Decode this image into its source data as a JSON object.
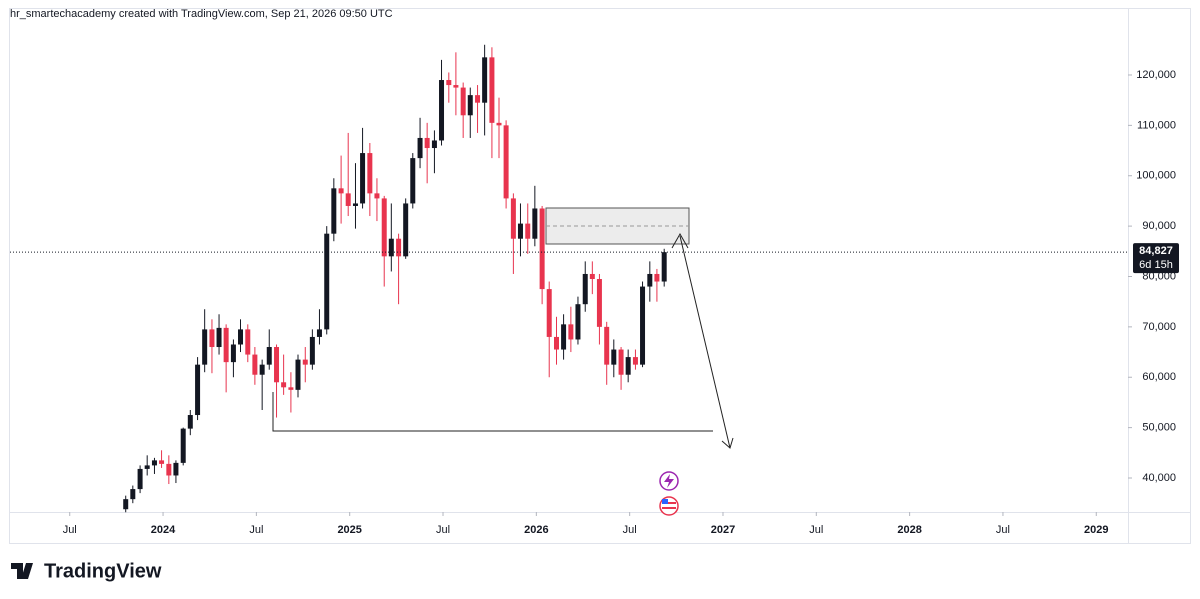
{
  "header": {
    "text": "hr_smartechacademy created with TradingView.com, Sep 21, 2026 09:50 UTC"
  },
  "footer": {
    "brand": "TradingView"
  },
  "chart_data": {
    "type": "candlestick",
    "up_color": "#131722",
    "down_color": "#e8344e",
    "xlim": [
      2023.18,
      2029.17
    ],
    "ylim": [
      33250,
      132900
    ],
    "xticks": [
      {
        "value": 2023.5,
        "label": "Jul"
      },
      2024,
      {
        "value": 2024.5,
        "label": "Jul"
      },
      2025,
      {
        "value": 2025.5,
        "label": "Jul"
      },
      2026,
      {
        "value": 2026.5,
        "label": "Jul"
      },
      2027,
      {
        "value": 2027.5,
        "label": "Jul"
      },
      2028,
      {
        "value": 2028.5,
        "label": "Jul"
      },
      2029
    ],
    "yticks": [
      {
        "value": 40000,
        "label": "40,000"
      },
      {
        "value": 50000,
        "label": "50,000"
      },
      {
        "value": 60000,
        "label": "60,000"
      },
      {
        "value": 70000,
        "label": "70,000"
      },
      {
        "value": 80000,
        "label": "80,000"
      },
      {
        "value": 90000,
        "label": "90,000"
      },
      {
        "value": 100000,
        "label": "100,000"
      },
      {
        "value": 110000,
        "label": "110,000"
      },
      {
        "value": 120000,
        "label": "120,000"
      }
    ],
    "last_price_label": "84,827",
    "countdown": "6d 15h",
    "x": [
      2023.8,
      2023.838,
      2023.877,
      2023.915,
      2023.954,
      2023.992,
      2024.031,
      2024.069,
      2024.108,
      2024.146,
      2024.185,
      2024.223,
      2024.262,
      2024.3,
      2024.338,
      2024.377,
      2024.415,
      2024.454,
      2024.492,
      2024.531,
      2024.569,
      2024.608,
      2024.646,
      2024.685,
      2024.723,
      2024.762,
      2024.8,
      2024.838,
      2024.877,
      2024.915,
      2024.954,
      2024.992,
      2025.031,
      2025.069,
      2025.108,
      2025.146,
      2025.185,
      2025.223,
      2025.262,
      2025.3,
      2025.338,
      2025.377,
      2025.415,
      2025.454,
      2025.492,
      2025.531,
      2025.569,
      2025.608,
      2025.646,
      2025.685,
      2025.723,
      2025.762,
      2025.8,
      2025.838,
      2025.877,
      2025.915,
      2025.954,
      2025.992,
      2026.031,
      2026.069,
      2026.108,
      2026.146,
      2026.185,
      2026.223,
      2026.262,
      2026.3,
      2026.338,
      2026.377,
      2026.415,
      2026.454,
      2026.492,
      2026.531,
      2026.569,
      2026.608,
      2026.646,
      2026.685
    ],
    "ohlc": [
      [
        33800,
        36500,
        33200,
        35800
      ],
      [
        35800,
        38500,
        35000,
        37800
      ],
      [
        37800,
        42500,
        37000,
        41800
      ],
      [
        41800,
        44500,
        40500,
        42500
      ],
      [
        42500,
        44000,
        40800,
        43500
      ],
      [
        43500,
        45500,
        42000,
        42800
      ],
      [
        42800,
        44500,
        38800,
        40500
      ],
      [
        40500,
        43500,
        39000,
        43000
      ],
      [
        43000,
        50000,
        42500,
        49800
      ],
      [
        49800,
        53500,
        48500,
        52500
      ],
      [
        52500,
        64000,
        51500,
        62500
      ],
      [
        62500,
        73500,
        61000,
        69500
      ],
      [
        69500,
        71500,
        60800,
        66000
      ],
      [
        66000,
        72500,
        64500,
        69800
      ],
      [
        69800,
        70500,
        57000,
        63000
      ],
      [
        63000,
        67500,
        60000,
        66500
      ],
      [
        66500,
        71500,
        65000,
        69500
      ],
      [
        69500,
        70500,
        63000,
        64500
      ],
      [
        64500,
        66000,
        58500,
        60500
      ],
      [
        60500,
        63500,
        53500,
        62500
      ],
      [
        62500,
        69500,
        61500,
        66000
      ],
      [
        66000,
        66500,
        52000,
        59000
      ],
      [
        59000,
        64500,
        56500,
        58000
      ],
      [
        58000,
        61000,
        53000,
        57500
      ],
      [
        57500,
        64500,
        56000,
        63500
      ],
      [
        63500,
        66000,
        59000,
        62500
      ],
      [
        62500,
        69500,
        61500,
        68000
      ],
      [
        68000,
        73500,
        66500,
        69500
      ],
      [
        69500,
        90000,
        68500,
        88500
      ],
      [
        88500,
        99500,
        87000,
        97500
      ],
      [
        97500,
        104000,
        90500,
        96500
      ],
      [
        96500,
        108500,
        92000,
        94000
      ],
      [
        94000,
        102500,
        89500,
        94500
      ],
      [
        94500,
        109500,
        93500,
        104500
      ],
      [
        104500,
        106500,
        92000,
        96500
      ],
      [
        96500,
        99500,
        91000,
        95500
      ],
      [
        95500,
        96000,
        78000,
        84000
      ],
      [
        84000,
        94500,
        81000,
        87500
      ],
      [
        87500,
        88500,
        74500,
        84000
      ],
      [
        84000,
        95500,
        83500,
        94500
      ],
      [
        94500,
        104500,
        93500,
        103500
      ],
      [
        103500,
        111500,
        101500,
        107500
      ],
      [
        107500,
        110500,
        98500,
        105500
      ],
      [
        105500,
        109000,
        100500,
        107000
      ],
      [
        107000,
        123000,
        106000,
        119000
      ],
      [
        119000,
        120500,
        114500,
        118000
      ],
      [
        118000,
        124500,
        112000,
        117500
      ],
      [
        117500,
        118500,
        107500,
        112000
      ],
      [
        112000,
        117500,
        107500,
        116000
      ],
      [
        116000,
        118000,
        108500,
        114500
      ],
      [
        114500,
        126000,
        108000,
        123500
      ],
      [
        123500,
        125500,
        103500,
        110500
      ],
      [
        110500,
        115500,
        103500,
        110000
      ],
      [
        110000,
        111000,
        93500,
        95500
      ],
      [
        95500,
        96500,
        80500,
        87500
      ],
      [
        87500,
        94500,
        84000,
        90500
      ],
      [
        90500,
        94500,
        84500,
        87500
      ],
      [
        87500,
        98000,
        86000,
        93500
      ],
      [
        93500,
        94000,
        74500,
        77500
      ],
      [
        77500,
        79000,
        60000,
        68000
      ],
      [
        68000,
        72000,
        62500,
        65500
      ],
      [
        65500,
        72500,
        63500,
        70500
      ],
      [
        70500,
        74000,
        65000,
        67500
      ],
      [
        67500,
        76000,
        66500,
        74500
      ],
      [
        74500,
        83000,
        73000,
        80500
      ],
      [
        80500,
        83000,
        76500,
        79500
      ],
      [
        79500,
        80500,
        66500,
        70000
      ],
      [
        70000,
        71000,
        58500,
        62500
      ],
      [
        62500,
        67500,
        60000,
        65500
      ],
      [
        65500,
        66000,
        57500,
        60500
      ],
      [
        60500,
        65500,
        59000,
        64000
      ],
      [
        64000,
        65500,
        61500,
        62500
      ],
      [
        62500,
        79000,
        62000,
        78000
      ],
      [
        78000,
        83000,
        75000,
        80500
      ],
      [
        80500,
        81500,
        75000,
        79000
      ],
      [
        79000,
        85500,
        78000,
        84827
      ]
    ]
  }
}
